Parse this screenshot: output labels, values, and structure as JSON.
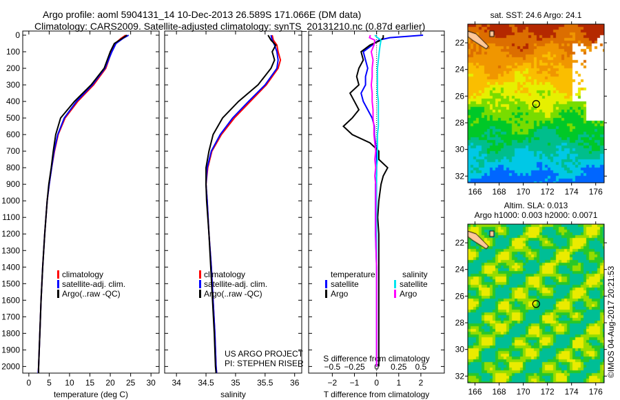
{
  "title_line1": "Argo profile: aoml 5904131_14 10-Dec-2013 26.589S 171.066E (DM data)",
  "title_line2": "Climatology: CARS2009. Satellite-adjusted climatology: synTS_20131210.nc (0.87d earlier)",
  "colors": {
    "climatology": "#ff0000",
    "satellite": "#0000ff",
    "argo": "#000000",
    "sal_satellite": "#00e5ee",
    "sal_argo": "#ff00ff"
  },
  "chart_data": [
    {
      "type": "line",
      "id": "temperature",
      "xlabel": "temperature (deg C)",
      "ylabel": "",
      "xlim": [
        -1.5,
        32
      ],
      "ylim": [
        2040,
        -25
      ],
      "xticks": [
        0,
        5,
        10,
        15,
        20,
        25,
        30
      ],
      "yticks": [
        0,
        100,
        200,
        300,
        400,
        500,
        600,
        700,
        800,
        900,
        1000,
        1100,
        1200,
        1300,
        1400,
        1500,
        1600,
        1700,
        1800,
        1900,
        2000
      ],
      "depth": [
        0,
        20,
        50,
        100,
        200,
        300,
        400,
        500,
        600,
        700,
        800,
        900,
        1000,
        1200,
        1400,
        1600,
        1800,
        2000,
        2040
      ],
      "series": [
        {
          "name": "climatology",
          "color": "#ff0000",
          "values": [
            23.8,
            22.6,
            21.2,
            20.3,
            18.9,
            15.9,
            12.0,
            8.9,
            7.2,
            6.3,
            5.6,
            5.0,
            4.5,
            3.9,
            3.4,
            3.0,
            2.7,
            2.4,
            2.3
          ]
        },
        {
          "name": "satellite-adj. clim.",
          "color": "#0000ff",
          "values": [
            24.5,
            23.1,
            21.4,
            20.4,
            18.7,
            15.6,
            11.7,
            8.7,
            7.1,
            6.2,
            5.6,
            5.0,
            4.5,
            3.9,
            3.4,
            3.0,
            2.7,
            2.4,
            2.3
          ]
        },
        {
          "name": "Argo(..raw -QC)",
          "color": "#000000",
          "values": [
            24.1,
            22.9,
            21.0,
            20.0,
            18.5,
            15.3,
            11.2,
            7.8,
            6.6,
            6.0,
            5.5,
            4.9,
            4.5,
            3.9,
            3.4,
            3.0,
            2.7,
            2.4,
            2.4
          ]
        }
      ],
      "legend": [
        "climatology",
        "satellite-adj. clim.",
        "Argo(..raw -QC)"
      ]
    },
    {
      "type": "line",
      "id": "salinity",
      "xlabel": "salinity",
      "xlim": [
        33.8,
        36.12
      ],
      "ylim": [
        2040,
        -25
      ],
      "xticks": [
        34,
        34.5,
        35,
        35.5,
        36
      ],
      "depth": [
        0,
        30,
        60,
        100,
        150,
        200,
        300,
        400,
        500,
        600,
        700,
        800,
        900,
        1000,
        1200,
        1400,
        1600,
        1800,
        2000,
        2040
      ],
      "series": [
        {
          "name": "climatology",
          "color": "#ff0000",
          "values": [
            35.62,
            35.64,
            35.7,
            35.72,
            35.76,
            35.72,
            35.52,
            35.25,
            34.98,
            34.76,
            34.6,
            34.53,
            34.5,
            34.52,
            34.55,
            34.59,
            34.62,
            34.65,
            34.67,
            34.68
          ]
        },
        {
          "name": "satellite-adj. clim.",
          "color": "#0000ff",
          "values": [
            35.6,
            35.62,
            35.66,
            35.7,
            35.72,
            35.7,
            35.5,
            35.22,
            34.95,
            34.74,
            34.59,
            34.52,
            34.5,
            34.52,
            34.55,
            34.59,
            34.62,
            34.65,
            34.67,
            34.68
          ]
        },
        {
          "name": "Argo(..raw -QC)",
          "color": "#000000",
          "values": [
            35.55,
            35.6,
            35.68,
            35.62,
            35.66,
            35.6,
            35.38,
            35.05,
            34.78,
            34.62,
            34.55,
            34.5,
            34.5,
            34.51,
            34.55,
            34.58,
            34.61,
            34.64,
            34.66,
            34.67
          ]
        }
      ],
      "legend": [
        "climatology",
        "satellite-adj. clim.",
        "Argo(..raw -QC)"
      ],
      "annotation": [
        "US ARGO PROJECT",
        "PI: STEPHEN RISER"
      ]
    },
    {
      "type": "line",
      "id": "difference",
      "xlabel": "T difference from climatology",
      "x2label": "S difference from climatology",
      "xlim": [
        -3.07,
        3.06
      ],
      "x2lim": [
        -0.5,
        0.5
      ],
      "ylim": [
        2040,
        -25
      ],
      "xticks": [
        -2,
        -1,
        0,
        1,
        2
      ],
      "x2ticks": [
        -0.5,
        -0.25,
        0,
        0.25,
        0.5
      ],
      "depth": [
        0,
        15,
        30,
        60,
        100,
        150,
        200,
        250,
        300,
        350,
        400,
        450,
        500,
        550,
        600,
        650,
        700,
        750,
        800,
        850,
        900,
        1000,
        1100,
        1200,
        1400,
        1600,
        1800,
        2000
      ],
      "series": [
        {
          "name": "temperature satellite",
          "color": "#0000ff",
          "axis": "T",
          "values": [
            2.1,
            0.6,
            0.1,
            -0.2,
            -0.6,
            -0.5,
            -0.4,
            -0.5,
            -0.5,
            -0.7,
            -0.6,
            -0.4,
            -0.2,
            -0.1,
            -0.1,
            -0.05,
            0,
            0,
            0,
            0,
            -0.05,
            -0.05,
            -0.05,
            -0.05,
            0,
            0,
            0,
            0
          ]
        },
        {
          "name": "temperature Argo",
          "color": "#000000",
          "axis": "T",
          "values": [
            0.3,
            0.3,
            0.2,
            -0.3,
            -0.7,
            -0.6,
            -0.8,
            -0.9,
            -0.8,
            -1.2,
            -1.0,
            -0.8,
            -1.1,
            -1.5,
            -1.1,
            -0.3,
            0.1,
            0.1,
            0.5,
            0.3,
            0.2,
            0.1,
            0.05,
            0.1,
            0.1,
            0.1,
            0.1,
            0.1
          ]
        },
        {
          "name": "salinity satellite",
          "color": "#00e5ee",
          "axis": "S",
          "values": [
            -0.02,
            0.01,
            0.05,
            0.04,
            0.03,
            0.02,
            0.01,
            0.01,
            0.01,
            0.01,
            0.02,
            0.02,
            0.02,
            0.02,
            0.01,
            0.01,
            0.01,
            0.01,
            0,
            0,
            0,
            0,
            0,
            0,
            0,
            0,
            0,
            0
          ]
        },
        {
          "name": "salinity Argo",
          "color": "#ff00ff",
          "axis": "S",
          "values": [
            -0.07,
            -0.08,
            -0.02,
            -0.03,
            -0.06,
            -0.04,
            -0.05,
            -0.05,
            -0.06,
            -0.05,
            -0.05,
            -0.04,
            -0.04,
            -0.03,
            -0.03,
            -0.02,
            -0.01,
            -0.02,
            -0.01,
            -0.02,
            -0.01,
            -0.01,
            -0.01,
            -0.01,
            0,
            0,
            0,
            0
          ]
        }
      ],
      "legend": {
        "temperature_title": "temperature",
        "salinity_title": "salinity",
        "t_sat": "satellite",
        "t_argo": "Argo",
        "s_sat": "satellite",
        "s_argo": "Argo"
      }
    },
    {
      "type": "heatmap",
      "id": "sst_map",
      "title": "sat. SST: 24.6 Argo: 24.1",
      "xlim": [
        165.4,
        176.7
      ],
      "ylim": [
        -32.5,
        -20.6
      ],
      "xticks": [
        166,
        168,
        170,
        172,
        174,
        176
      ],
      "yticks": [
        -22,
        -24,
        -26,
        -28,
        -30,
        -32
      ],
      "marker": {
        "lon": 171.066,
        "lat": -26.589
      }
    },
    {
      "type": "heatmap",
      "id": "sla_map",
      "title": [
        "Altim. SLA: 0.013",
        "Argo h1000: 0.003 h2000: 0.0071"
      ],
      "xlim": [
        165.4,
        176.7
      ],
      "ylim": [
        -32.5,
        -20.6
      ],
      "xticks": [
        166,
        168,
        170,
        172,
        174,
        176
      ],
      "yticks": [
        -22,
        -24,
        -26,
        -28,
        -30,
        -32
      ],
      "marker": {
        "lon": 171.066,
        "lat": -26.589
      }
    }
  ],
  "copyright": "©IMOS 04-Aug-2017 20:21:53"
}
